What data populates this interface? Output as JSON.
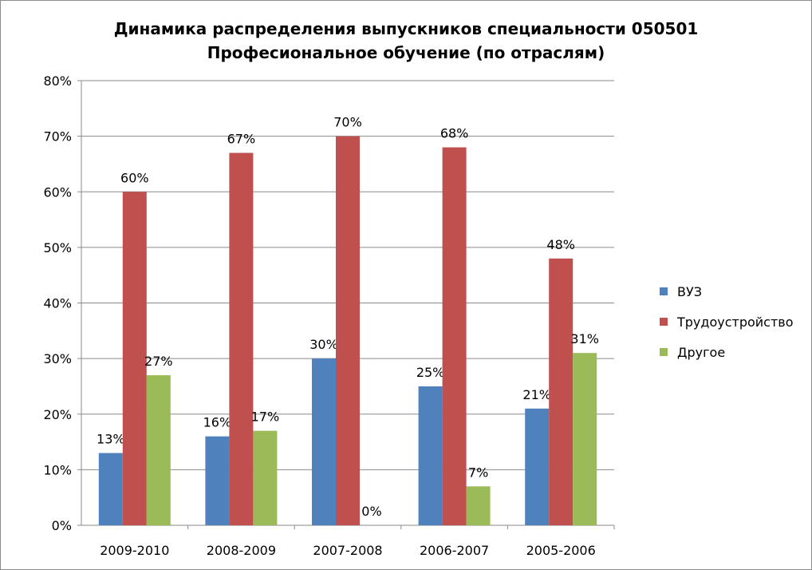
{
  "chart_data": {
    "type": "bar",
    "title_line1": "Динамика распределения выпускников специальности 050501",
    "title_line2": "Професиональное обучение (по отраслям)",
    "categories": [
      "2009-2010",
      "2008-2009",
      "2007-2008",
      "2006-2007",
      "2005-2006"
    ],
    "series": [
      {
        "name": "ВУЗ",
        "color": "#4f81bd",
        "values": [
          13,
          16,
          30,
          25,
          21
        ]
      },
      {
        "name": "Трудоустройство",
        "color": "#c0504d",
        "values": [
          60,
          67,
          70,
          68,
          48
        ]
      },
      {
        "name": "Другое",
        "color": "#9bbb59",
        "values": [
          27,
          17,
          0,
          7,
          31
        ]
      }
    ],
    "ylim": [
      0,
      80
    ],
    "ytick_step": 10,
    "value_suffix": "%",
    "grid": true,
    "legend_position": "right"
  }
}
